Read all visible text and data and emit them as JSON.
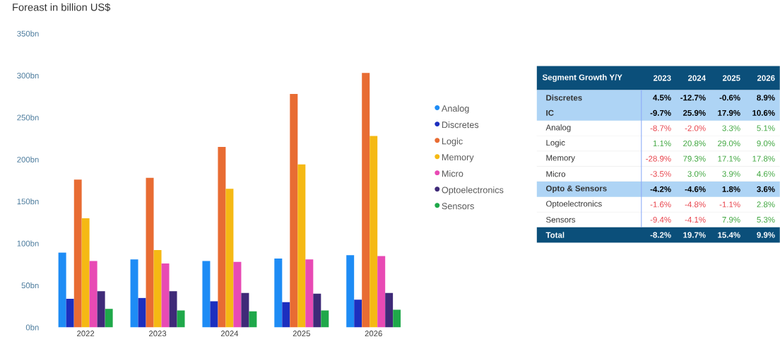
{
  "chart_data": [
    {
      "type": "bar",
      "title": "Foreast in billion US$",
      "categories": [
        "2022",
        "2023",
        "2024",
        "2025",
        "2026"
      ],
      "series": [
        {
          "name": "Analog",
          "color": "#1e8cf5",
          "values": [
            89,
            81,
            79,
            82,
            86
          ]
        },
        {
          "name": "Discretes",
          "color": "#1c2fbf",
          "values": [
            34,
            35,
            31,
            30,
            33
          ]
        },
        {
          "name": "Logic",
          "color": "#e86c33",
          "values": [
            176,
            178,
            215,
            278,
            303
          ]
        },
        {
          "name": "Memory",
          "color": "#f5b914",
          "values": [
            130,
            92,
            165,
            194,
            228
          ]
        },
        {
          "name": "Micro",
          "color": "#e84ab4",
          "values": [
            79,
            76,
            78,
            81,
            85
          ]
        },
        {
          "name": "Optoelectronics",
          "color": "#3f2a78",
          "values": [
            43,
            43,
            41,
            40,
            41
          ]
        },
        {
          "name": "Sensors",
          "color": "#1fa84a",
          "values": [
            22,
            20,
            19,
            20,
            21
          ]
        }
      ],
      "ylim": [
        0,
        350
      ],
      "yticks": [
        {
          "value": 0,
          "label": "0bn"
        },
        {
          "value": 50,
          "label": "50bn"
        },
        {
          "value": 100,
          "label": "100bn"
        },
        {
          "value": 150,
          "label": "150bn"
        },
        {
          "value": 200,
          "label": "200bn"
        },
        {
          "value": 250,
          "label": "250bn"
        },
        {
          "value": 300,
          "label": "300bn"
        },
        {
          "value": 350,
          "label": "350bn"
        }
      ],
      "grid": false,
      "legend": "right"
    },
    {
      "type": "heatmap",
      "title": "Segment Growth Y/Y",
      "categories": [
        "2023",
        "2024",
        "2025",
        "2026"
      ],
      "y_categories": [
        "Discretes",
        "IC",
        "Analog",
        "Logic",
        "Memory",
        "Micro",
        "Opto & Sensors",
        "Optoelectronics",
        "Sensors",
        "Total"
      ],
      "cells": [
        [
          4.5,
          -12.7,
          -0.6,
          8.9
        ],
        [
          -9.7,
          25.9,
          17.9,
          10.6
        ],
        [
          -8.7,
          -2.0,
          3.3,
          5.1
        ],
        [
          1.1,
          20.8,
          29.0,
          9.0
        ],
        [
          -28.9,
          79.3,
          17.1,
          17.8
        ],
        [
          -3.5,
          3.0,
          3.9,
          4.6
        ],
        [
          -4.2,
          -4.6,
          1.8,
          3.6
        ],
        [
          -1.6,
          -4.8,
          -1.1,
          2.8
        ],
        [
          -9.4,
          -4.1,
          7.9,
          5.3
        ],
        [
          -8.2,
          19.7,
          15.4,
          9.9
        ]
      ],
      "cell_labels": [
        [
          "4.5%",
          "-12.7%",
          "-0.6%",
          "8.9%"
        ],
        [
          "-9.7%",
          "25.9%",
          "17.9%",
          "10.6%"
        ],
        [
          "-8.7%",
          "-2.0%",
          "3.3%",
          "5.1%"
        ],
        [
          "1.1%",
          "20.8%",
          "29.0%",
          "9.0%"
        ],
        [
          "-28.9%",
          "79.3%",
          "17.1%",
          "17.8%"
        ],
        [
          "-3.5%",
          "3.0%",
          "3.9%",
          "4.6%"
        ],
        [
          "-4.2%",
          "-4.6%",
          "1.8%",
          "3.6%"
        ],
        [
          "-1.6%",
          "-4.8%",
          "-1.1%",
          "2.8%"
        ],
        [
          "-9.4%",
          "-4.1%",
          "7.9%",
          "5.3%"
        ],
        [
          "-8.2%",
          "19.7%",
          "15.4%",
          "9.9%"
        ]
      ]
    }
  ]
}
